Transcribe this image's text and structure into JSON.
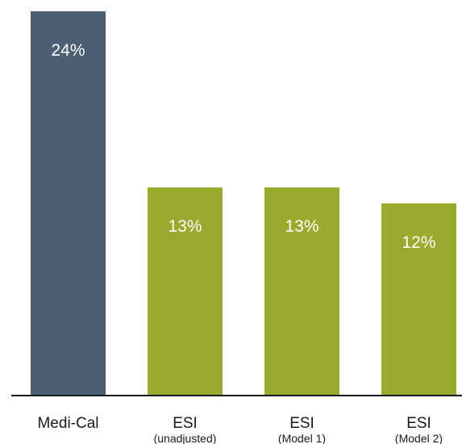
{
  "chart_data": {
    "type": "bar",
    "categories": [
      {
        "label": "Medi-Cal",
        "sublabel": ""
      },
      {
        "label": "ESI",
        "sublabel": "(unadjusted)"
      },
      {
        "label": "ESI",
        "sublabel": "(Model 1)"
      },
      {
        "label": "ESI",
        "sublabel": "(Model 2)"
      }
    ],
    "values": [
      24,
      13,
      13,
      12
    ],
    "value_labels": [
      "24%",
      "13%",
      "13%",
      "12%"
    ],
    "colors": [
      "#4b5e72",
      "#9aaa2e",
      "#9aaa2e",
      "#9aaa2e"
    ],
    "axis_color": "#1a1a1a",
    "ylim": [
      0,
      24
    ],
    "grid": false,
    "legend": "none"
  }
}
